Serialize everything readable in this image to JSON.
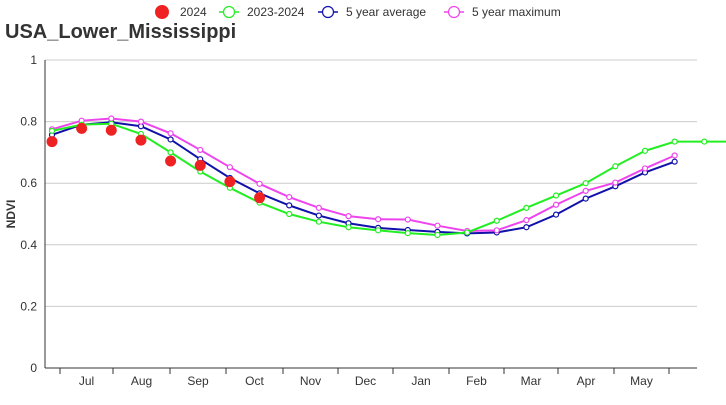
{
  "chart_data": {
    "type": "line",
    "title": "USA_Lower_Mississippi",
    "ylabel": "NDVI",
    "xlabel": "",
    "ylim": [
      0,
      1
    ],
    "yticks": [
      0,
      0.2,
      0.4,
      0.6,
      0.8,
      1
    ],
    "ytick_labels": [
      "0",
      "0.2",
      "0.4",
      "0.6",
      "0.8",
      "1"
    ],
    "months": [
      "Jul",
      "Aug",
      "Sep",
      "Oct",
      "Nov",
      "Dec",
      "Jan",
      "Feb",
      "Mar",
      "Apr",
      "May"
    ],
    "grid": "horizontal",
    "legend_position": "top",
    "series": [
      {
        "name": "2024",
        "style": "dots",
        "color": "#ee2222",
        "x": [
          0,
          1,
          2,
          3,
          4,
          5,
          6,
          7
        ],
        "values": [
          0.735,
          0.778,
          0.772,
          0.74,
          0.672,
          0.658,
          0.605,
          0.553
        ]
      },
      {
        "name": "2023-2024",
        "style": "line",
        "color": "#22ee22",
        "x": [
          0,
          1,
          2,
          3,
          4,
          5,
          6,
          7,
          8,
          9,
          10,
          11,
          12,
          13,
          14,
          15,
          16,
          17,
          18,
          19,
          20,
          21,
          22,
          23
        ],
        "values": [
          0.77,
          0.79,
          0.793,
          0.76,
          0.7,
          0.638,
          0.585,
          0.537,
          0.5,
          0.475,
          0.457,
          0.447,
          0.438,
          0.432,
          0.44,
          0.478,
          0.52,
          0.56,
          0.6,
          0.655,
          0.705,
          0.735,
          0.735,
          0.735
        ]
      },
      {
        "name": "5 year average",
        "style": "line",
        "color": "#1111aa",
        "x": [
          0,
          1,
          2,
          3,
          4,
          5,
          6,
          7,
          8,
          9,
          10,
          11,
          12,
          13,
          14,
          15,
          16,
          17,
          18,
          19,
          20,
          21
        ],
        "values": [
          0.757,
          0.79,
          0.798,
          0.785,
          0.742,
          0.678,
          0.617,
          0.567,
          0.528,
          0.495,
          0.47,
          0.455,
          0.448,
          0.442,
          0.437,
          0.44,
          0.457,
          0.498,
          0.55,
          0.59,
          0.635,
          0.67
        ]
      },
      {
        "name": "5 year maximum",
        "style": "line",
        "color": "#ee44ee",
        "x": [
          0,
          1,
          2,
          3,
          4,
          5,
          6,
          7,
          8,
          9,
          10,
          11,
          12,
          13,
          14,
          15,
          16,
          17,
          18,
          19,
          20,
          21
        ],
        "values": [
          0.775,
          0.803,
          0.81,
          0.8,
          0.762,
          0.708,
          0.652,
          0.598,
          0.555,
          0.52,
          0.493,
          0.483,
          0.482,
          0.462,
          0.445,
          0.447,
          0.48,
          0.53,
          0.575,
          0.602,
          0.648,
          0.69
        ]
      }
    ]
  }
}
